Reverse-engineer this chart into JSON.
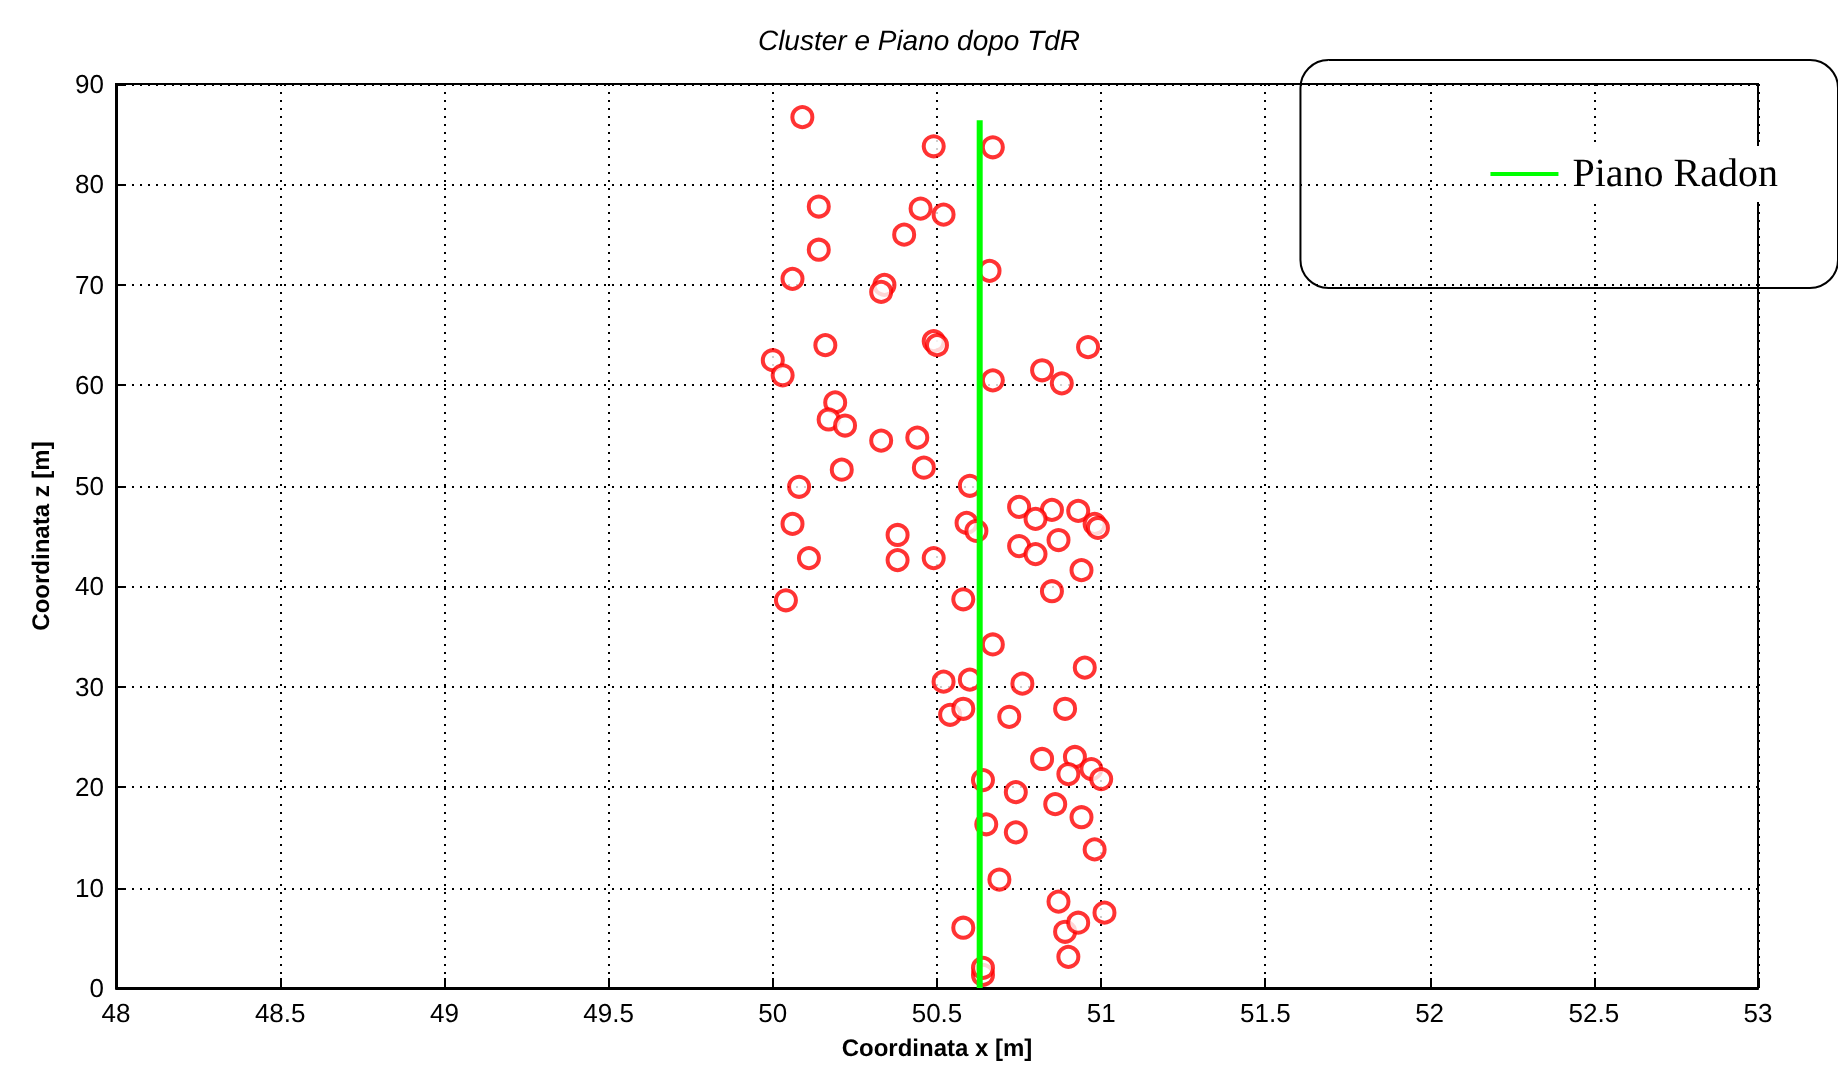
{
  "chart_data": {
    "type": "scatter",
    "title": "Cluster e Piano dopo TdR",
    "xlabel": "Coordinata x [m]",
    "ylabel": "Coordinata z [m]",
    "xlim": [
      48,
      53
    ],
    "xticks": [
      48,
      48.5,
      49,
      49.5,
      50,
      50.5,
      51,
      51.5,
      52,
      52.5,
      53
    ],
    "ylim": [
      0,
      90
    ],
    "yticks": [
      0,
      10,
      20,
      30,
      40,
      50,
      60,
      70,
      80,
      90
    ],
    "grid": true,
    "legend": "top right",
    "marker": "circle",
    "series": [
      {
        "color": "#ff0000",
        "x": [
          50.09,
          50.49,
          50.67,
          50.14,
          50.45,
          50.52,
          50.4,
          50.14,
          50.06,
          50.34,
          50.33,
          50.66,
          50.16,
          50.49,
          50.5,
          50.96,
          50.0,
          50.03,
          50.67,
          50.82,
          50.88,
          50.19,
          50.17,
          50.22,
          50.33,
          50.44,
          50.21,
          50.46,
          50.08,
          50.6,
          50.75,
          50.85,
          50.93,
          50.8,
          50.98,
          50.99,
          50.06,
          50.59,
          50.62,
          50.75,
          50.87,
          50.8,
          50.38,
          50.38,
          50.11,
          50.49,
          50.94,
          50.85,
          50.04,
          50.58,
          50.67,
          50.95,
          50.52,
          50.6,
          50.76,
          50.54,
          50.58,
          50.72,
          50.89,
          50.64,
          50.74,
          50.82,
          50.92,
          50.9,
          50.97,
          51.0,
          50.65,
          50.74,
          50.86,
          50.94,
          50.98,
          50.69,
          50.87,
          50.58,
          50.89,
          50.93,
          51.01,
          50.9,
          50.64,
          50.64
        ],
        "values": [
          86.7,
          83.8,
          83.7,
          77.8,
          77.6,
          77.0,
          75.0,
          73.5,
          70.6,
          70.0,
          69.3,
          71.4,
          64.0,
          64.4,
          64.0,
          63.8,
          62.5,
          61.0,
          60.5,
          61.5,
          60.2,
          58.3,
          56.6,
          56.0,
          54.5,
          54.8,
          51.6,
          51.8,
          49.9,
          50.0,
          47.9,
          47.6,
          47.5,
          46.7,
          46.2,
          45.8,
          46.2,
          46.3,
          45.5,
          44.0,
          44.6,
          43.2,
          45.1,
          42.6,
          42.8,
          42.8,
          41.6,
          39.5,
          38.6,
          38.7,
          34.2,
          31.9,
          30.5,
          30.7,
          30.3,
          27.2,
          27.8,
          27.0,
          27.8,
          20.7,
          19.5,
          22.8,
          23.0,
          21.3,
          21.8,
          20.8,
          16.3,
          15.5,
          18.3,
          17.0,
          13.8,
          10.8,
          8.6,
          6.0,
          5.6,
          6.5,
          7.5,
          3.1,
          1.3,
          2.0
        ]
      },
      {
        "type": "line",
        "name": "Piano Radon",
        "color": "#00ff00",
        "marker": "none",
        "x": [
          50.63,
          50.63
        ],
        "values": [
          0,
          86.4
        ]
      }
    ]
  }
}
